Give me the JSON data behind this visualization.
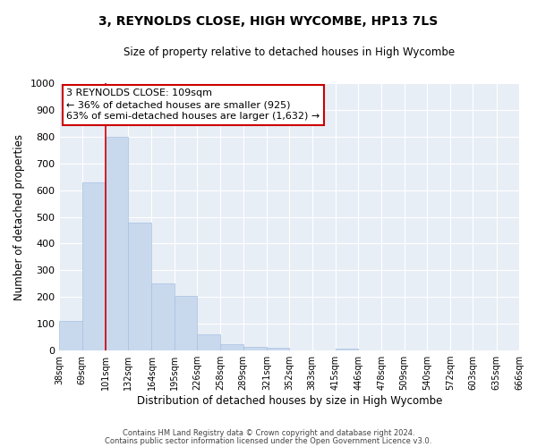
{
  "title": "3, REYNOLDS CLOSE, HIGH WYCOMBE, HP13 7LS",
  "subtitle": "Size of property relative to detached houses in High Wycombe",
  "xlabel": "Distribution of detached houses by size in High Wycombe",
  "ylabel": "Number of detached properties",
  "bar_color": "#c8d9ee",
  "bar_edge_color": "#a8c0df",
  "background_color": "#ffffff",
  "plot_bg_color": "#e8eef6",
  "grid_color": "#ffffff",
  "annotation_box_color": "#ffffff",
  "annotation_border_color": "#cc0000",
  "vline_color": "#cc0000",
  "vline_x": 101,
  "annotation_title": "3 REYNOLDS CLOSE: 109sqm",
  "annotation_line1": "← 36% of detached houses are smaller (925)",
  "annotation_line2": "63% of semi-detached houses are larger (1,632) →",
  "footer1": "Contains HM Land Registry data © Crown copyright and database right 2024.",
  "footer2": "Contains public sector information licensed under the Open Government Licence v3.0.",
  "bin_edges": [
    38,
    69,
    101,
    132,
    164,
    195,
    226,
    258,
    289,
    321,
    352,
    383,
    415,
    446,
    478,
    509,
    540,
    572,
    603,
    635,
    666
  ],
  "bin_labels": [
    "38sqm",
    "69sqm",
    "101sqm",
    "132sqm",
    "164sqm",
    "195sqm",
    "226sqm",
    "258sqm",
    "289sqm",
    "321sqm",
    "352sqm",
    "383sqm",
    "415sqm",
    "446sqm",
    "478sqm",
    "509sqm",
    "540sqm",
    "572sqm",
    "603sqm",
    "635sqm",
    "666sqm"
  ],
  "bar_heights": [
    110,
    630,
    800,
    480,
    250,
    205,
    60,
    25,
    15,
    10,
    0,
    0,
    8,
    0,
    0,
    0,
    0,
    0,
    0,
    0
  ],
  "ylim": [
    0,
    1000
  ],
  "yticks": [
    0,
    100,
    200,
    300,
    400,
    500,
    600,
    700,
    800,
    900,
    1000
  ]
}
